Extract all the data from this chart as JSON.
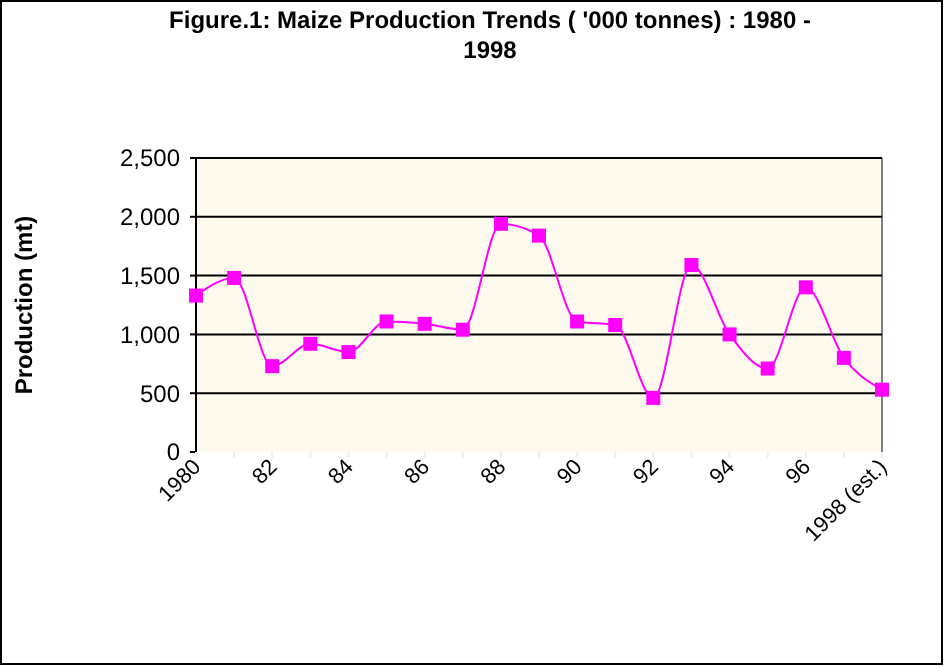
{
  "chart_data": {
    "type": "line",
    "title": "Figure.1: Maize Production Trends ( '000 tonnes) : 1980 - 1998",
    "ylabel": "Production (mt)",
    "categories": [
      "1980",
      null,
      "82",
      null,
      "84",
      null,
      "86",
      null,
      "88",
      null,
      "90",
      null,
      "92",
      null,
      "94",
      null,
      "96",
      null,
      "1998 (est.)"
    ],
    "series": [
      {
        "color": "#ff00ff",
        "values": [
          1330,
          1480,
          730,
          920,
          850,
          1110,
          1090,
          1040,
          1940,
          1840,
          1110,
          1080,
          460,
          1590,
          1000,
          710,
          1400,
          800,
          530
        ]
      }
    ],
    "ylim": [
      0,
      2500
    ],
    "yticks": [
      {
        "value": 0,
        "label": "0"
      },
      {
        "value": 500,
        "label": "500"
      },
      {
        "value": 1000,
        "label": "1,000"
      },
      {
        "value": 1500,
        "label": "1,500"
      },
      {
        "value": 2000,
        "label": "2,000"
      },
      {
        "value": 2500,
        "label": "2,500"
      }
    ],
    "grid": "y",
    "marker": "square",
    "line_style": "solid"
  }
}
